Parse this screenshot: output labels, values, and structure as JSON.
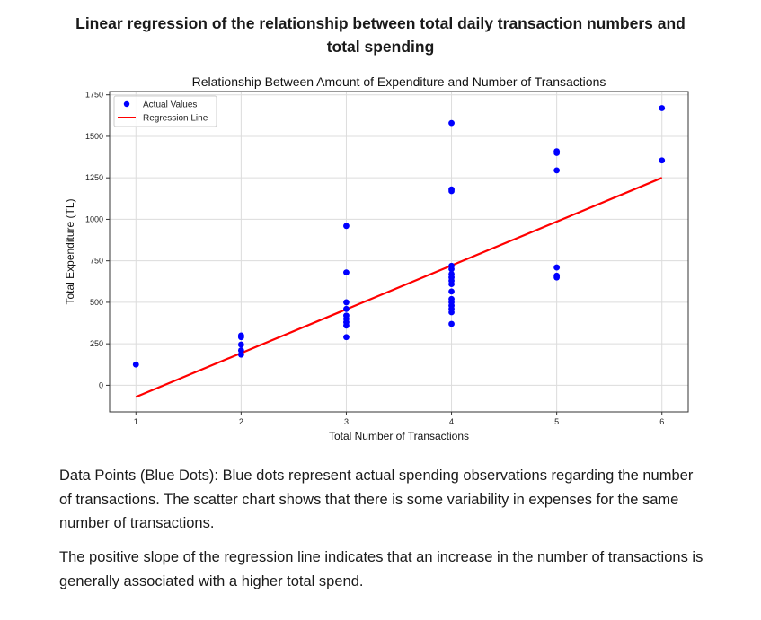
{
  "heading": {
    "line1": "Linear regression of the relationship between total daily transaction numbers and",
    "line2": "total spending"
  },
  "paragraphs": [
    "Data Points (Blue Dots): Blue dots represent actual spending observations regarding the number of transactions. The scatter chart shows that there is some variability in expenses for the same number of transactions.",
    "The positive slope of the regression line indicates that an increase in the number of transactions is generally associated with a higher total spend."
  ],
  "chart_data": {
    "type": "scatter",
    "title": "Relationship Between Amount of Expenditure and Number of Transactions",
    "xlabel": "Total Number of Transactions",
    "ylabel": "Total Expenditure (TL)",
    "xlim": [
      0.75,
      6.25
    ],
    "ylim": [
      -160,
      1770
    ],
    "xticks": [
      1,
      2,
      3,
      4,
      5,
      6
    ],
    "yticks": [
      0,
      250,
      500,
      750,
      1000,
      1250,
      1500,
      1750
    ],
    "grid": true,
    "legend_position": "top-left",
    "series": [
      {
        "name": "Actual Values",
        "kind": "scatter",
        "color": "#0000ff",
        "points": [
          [
            1,
            125
          ],
          [
            2,
            300
          ],
          [
            2,
            290
          ],
          [
            2,
            245
          ],
          [
            2,
            210
          ],
          [
            2,
            185
          ],
          [
            3,
            960
          ],
          [
            3,
            680
          ],
          [
            3,
            500
          ],
          [
            3,
            460
          ],
          [
            3,
            420
          ],
          [
            3,
            400
          ],
          [
            3,
            380
          ],
          [
            3,
            360
          ],
          [
            3,
            290
          ],
          [
            4,
            1580
          ],
          [
            4,
            1180
          ],
          [
            4,
            1170
          ],
          [
            4,
            720
          ],
          [
            4,
            700
          ],
          [
            4,
            670
          ],
          [
            4,
            650
          ],
          [
            4,
            630
          ],
          [
            4,
            610
          ],
          [
            4,
            565
          ],
          [
            4,
            520
          ],
          [
            4,
            500
          ],
          [
            4,
            480
          ],
          [
            4,
            460
          ],
          [
            4,
            440
          ],
          [
            4,
            370
          ],
          [
            5,
            1410
          ],
          [
            5,
            1400
          ],
          [
            5,
            1295
          ],
          [
            5,
            710
          ],
          [
            5,
            660
          ],
          [
            5,
            650
          ],
          [
            6,
            1670
          ],
          [
            6,
            1355
          ]
        ]
      },
      {
        "name": "Regression Line",
        "kind": "line",
        "color": "#ff0000",
        "points": [
          [
            1,
            -70
          ],
          [
            6,
            1250
          ]
        ]
      }
    ]
  }
}
